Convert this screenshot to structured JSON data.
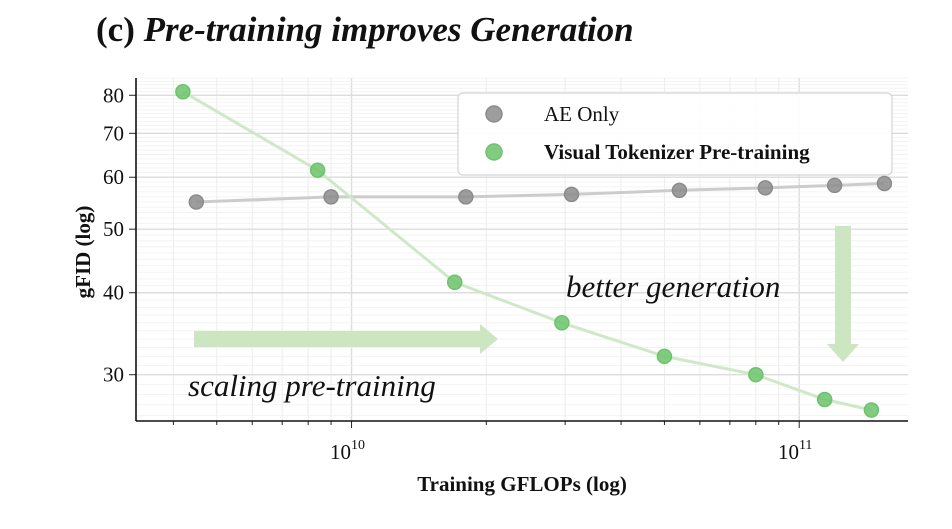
{
  "title": {
    "panel": "(c)",
    "text": "Pre-training improves Generation"
  },
  "chart_data": {
    "type": "line",
    "xlabel": "Training GFLOPs (log)",
    "ylabel": "gFID (log)",
    "xscale": "log",
    "yscale": "log",
    "xlim": [
      3300000000.0,
      175000000000.0
    ],
    "ylim": [
      25.5,
      85
    ],
    "x_ticks": [
      {
        "value": 10000000000.0,
        "base": "10",
        "exp": "10"
      },
      {
        "value": 100000000000.0,
        "base": "10",
        "exp": "11"
      }
    ],
    "y_ticks": [
      30,
      40,
      50,
      60,
      70,
      80
    ],
    "grid": true,
    "legend_position": "top-right",
    "series": [
      {
        "name": "AE Only",
        "color": "#8c8c8c",
        "line_color": "#cccccc",
        "bold": false,
        "x": [
          4500000000.0,
          9000000000.0,
          18000000000.0,
          31000000000.0,
          54000000000.0,
          84000000000.0,
          120000000000.0,
          155000000000.0
        ],
        "y": [
          55,
          56,
          56,
          56.5,
          57.3,
          57.8,
          58.3,
          58.7
        ]
      },
      {
        "name": "Visual Tokenizer Pre-training",
        "color": "#6cc36c",
        "line_color": "#cfe8c8",
        "bold": true,
        "x": [
          4200000000.0,
          8400000000.0,
          17000000000.0,
          29500000000.0,
          50000000000.0,
          80000000000.0,
          114000000000.0,
          145000000000.0
        ],
        "y": [
          81,
          61.5,
          41.5,
          36,
          32,
          30,
          27.5,
          26.5
        ]
      }
    ],
    "annotations": [
      {
        "text": "scaling pre-training",
        "arrow": "right"
      },
      {
        "text": "better generation",
        "arrow": "down"
      }
    ]
  }
}
